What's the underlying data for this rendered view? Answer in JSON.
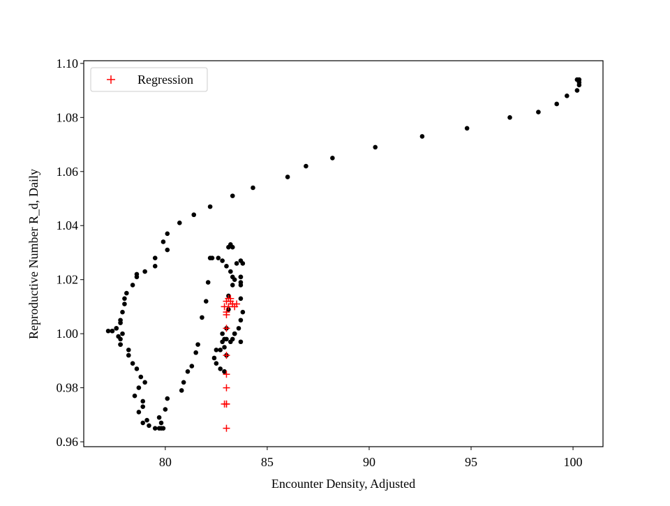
{
  "chart_data": {
    "type": "scatter",
    "xlabel": "Encounter Density, Adjusted",
    "ylabel": "Reproductive Number R_d, Daily",
    "xlim": [
      76.0,
      101.47
    ],
    "ylim": [
      0.9582,
      1.101
    ],
    "xticks": [
      80,
      85,
      90,
      95,
      100
    ],
    "yticks": [
      0.96,
      0.98,
      {
        "value": 1,
        "label": "1.00"
      },
      1.02,
      1.04,
      1.06,
      1.08,
      {
        "value": 1.1,
        "label": "1.10"
      }
    ],
    "legend": "upper left",
    "series": [
      {
        "color": "#000000",
        "marker": "o",
        "x": [
          100.2,
          100.3,
          100.3,
          100.3,
          100.2,
          99.7,
          99.2,
          98.3,
          96.9,
          94.8,
          92.6,
          90.3,
          88.2,
          86.9,
          86.0,
          84.3,
          83.3,
          82.2,
          81.4,
          80.7,
          80.1,
          79.9,
          80.1,
          79.5,
          79.5,
          79.0,
          78.6,
          78.6,
          78.4,
          78.1,
          78.0,
          78.0,
          77.9,
          77.8,
          77.6,
          77.4,
          77.2,
          77.4,
          77.6,
          77.8,
          77.9,
          77.8,
          77.7,
          77.8,
          77.8,
          78.2,
          78.2,
          78.4,
          78.6,
          78.8,
          79.0,
          78.7,
          78.5,
          78.7,
          78.9,
          78.9,
          79.1,
          78.9,
          79.2,
          79.5,
          79.8,
          79.7,
          79.9,
          79.8,
          79.7,
          80.0,
          80.1,
          80.8,
          80.9,
          81.1,
          81.3,
          81.5,
          81.6,
          81.8,
          82.0,
          82.1,
          82.2,
          82.3,
          82.6,
          82.8,
          83.0,
          83.2,
          83.1,
          83.3,
          83.4,
          83.3,
          83.5,
          83.7,
          83.8,
          83.7,
          83.7,
          83.7,
          83.7,
          83.7,
          83.8,
          83.7,
          83.6,
          83.4,
          83.3,
          83.2,
          83.0,
          82.8,
          82.7,
          82.5,
          82.4,
          82.5,
          82.7,
          82.9,
          82.9,
          83.0,
          82.9,
          82.9,
          82.8,
          83.0,
          83.4,
          83.7,
          83.1,
          83.1,
          83.2,
          83.3
        ],
        "values": [
          1.094,
          1.094,
          1.093,
          1.092,
          1.09,
          1.088,
          1.085,
          1.082,
          1.08,
          1.076,
          1.073,
          1.069,
          1.065,
          1.062,
          1.058,
          1.054,
          1.051,
          1.047,
          1.044,
          1.041,
          1.037,
          1.034,
          1.031,
          1.028,
          1.025,
          1.023,
          1.022,
          1.021,
          1.018,
          1.015,
          1.013,
          1.011,
          1.008,
          1.005,
          1.002,
          1.001,
          1.001,
          1.001,
          1.002,
          1.004,
          1.0,
          0.998,
          0.999,
          0.996,
          0.996,
          0.994,
          0.992,
          0.989,
          0.987,
          0.984,
          0.982,
          0.98,
          0.977,
          0.971,
          0.975,
          0.973,
          0.968,
          0.967,
          0.966,
          0.965,
          0.967,
          0.965,
          0.965,
          0.965,
          0.969,
          0.972,
          0.976,
          0.979,
          0.982,
          0.986,
          0.988,
          0.993,
          0.996,
          1.006,
          1.012,
          1.019,
          1.028,
          1.028,
          1.028,
          1.027,
          1.025,
          1.033,
          1.032,
          1.032,
          1.02,
          1.018,
          1.026,
          1.027,
          1.026,
          1.021,
          1.021,
          1.019,
          1.018,
          1.013,
          1.008,
          1.005,
          1.002,
          1.0,
          0.998,
          0.997,
          0.998,
          0.997,
          0.994,
          0.994,
          0.991,
          0.989,
          0.987,
          0.986,
          0.986,
          0.992,
          0.995,
          0.998,
          1.0,
          1.002,
          1.0,
          0.997,
          1.009,
          1.014,
          1.023,
          1.021
        ]
      },
      {
        "name": "Regression",
        "color": "#ff0000",
        "marker": "+",
        "x": [
          83.0,
          83.0,
          82.9,
          83.0,
          83.0,
          83.0,
          83.0,
          83.0,
          83.0,
          82.9,
          83.1,
          83.2,
          83.3,
          83.4,
          83.5,
          83.0,
          83.1,
          83.2,
          83.3,
          83.0
        ],
        "values": [
          0.965,
          0.974,
          0.974,
          0.974,
          0.98,
          0.985,
          0.992,
          1.002,
          1.007,
          1.01,
          1.01,
          1.012,
          1.011,
          1.01,
          1.011,
          1.012,
          1.013,
          1.013,
          1.011,
          1.008
        ]
      }
    ]
  }
}
